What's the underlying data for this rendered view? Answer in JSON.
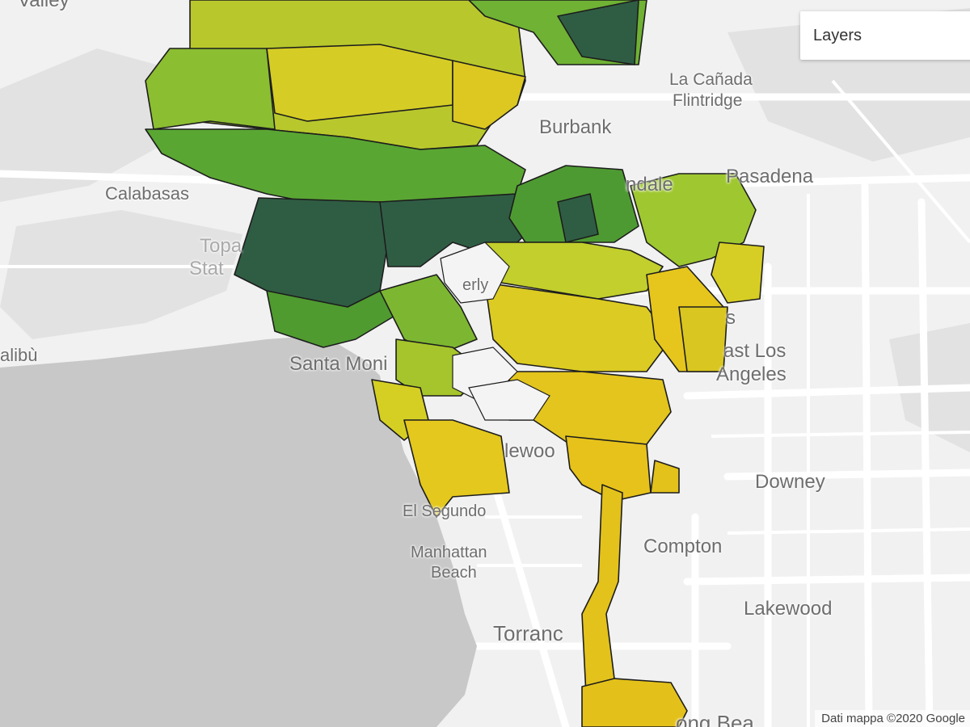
{
  "map": {
    "place_labels": {
      "valley": "Valley",
      "calabasas": "Calabasas",
      "topanga_1": "Topa",
      "topanga_2": "Stat",
      "malibu": "alibù",
      "santa_monica": "Santa Moni",
      "beverly": "erly",
      "la_canada_1": "La Cañada",
      "la_canada_2": "Flintridge",
      "burbank": "Burbank",
      "glendale": "ndale",
      "pasadena": "Pasadena",
      "los_angeles_partial": "s",
      "east_la_1": "ast Los",
      "east_la_2": "Angeles",
      "inglewood": "lewoo",
      "downey": "Downey",
      "el_segundo": "El Segundo",
      "manhattan_1": "Manhattan",
      "manhattan_2": "Beach",
      "compton": "Compton",
      "lakewood": "Lakewood",
      "torrance": "Torranc",
      "long_beach": "ong Bea"
    },
    "choropleth_palette": {
      "dark_green": "#2f5d44",
      "green": "#5fa833",
      "light_green": "#9fc830",
      "yellow_green": "#c9d12b",
      "yellow": "#e2cb1c",
      "gold": "#e8c21a"
    },
    "ocean_color": "#c8c8c8",
    "land_color": "#f1f1f1"
  },
  "controls": {
    "layers_label": "Layers"
  },
  "attribution": "Dati mappa ©2020 Google"
}
